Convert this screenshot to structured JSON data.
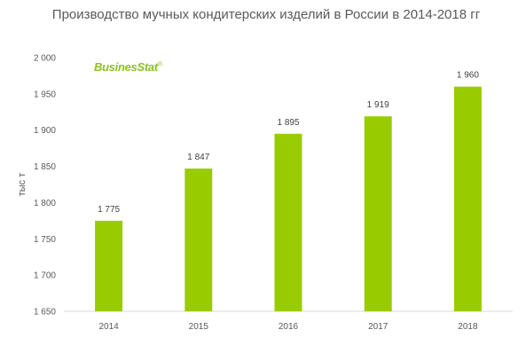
{
  "logo": "BusinesStat",
  "chart_data": {
    "type": "bar",
    "title": "Производство мучных кондитерских изделий в России в 2014-2018 гг",
    "xlabel": "",
    "ylabel": "тыс т",
    "categories": [
      "2014",
      "2015",
      "2016",
      "2017",
      "2018"
    ],
    "values": [
      1775,
      1847,
      1895,
      1919,
      1960
    ],
    "value_labels": [
      "1 775",
      "1 847",
      "1 895",
      "1 919",
      "1 960"
    ],
    "ylim": [
      1650,
      2000
    ],
    "yticks": [
      1650,
      1700,
      1750,
      1800,
      1850,
      1900,
      1950,
      2000
    ],
    "ytick_labels": [
      "1 650",
      "1 700",
      "1 750",
      "1 800",
      "1 850",
      "1 900",
      "1 950",
      "2 000"
    ],
    "bar_color": "#99cc00",
    "grid": false,
    "legend": "none"
  }
}
